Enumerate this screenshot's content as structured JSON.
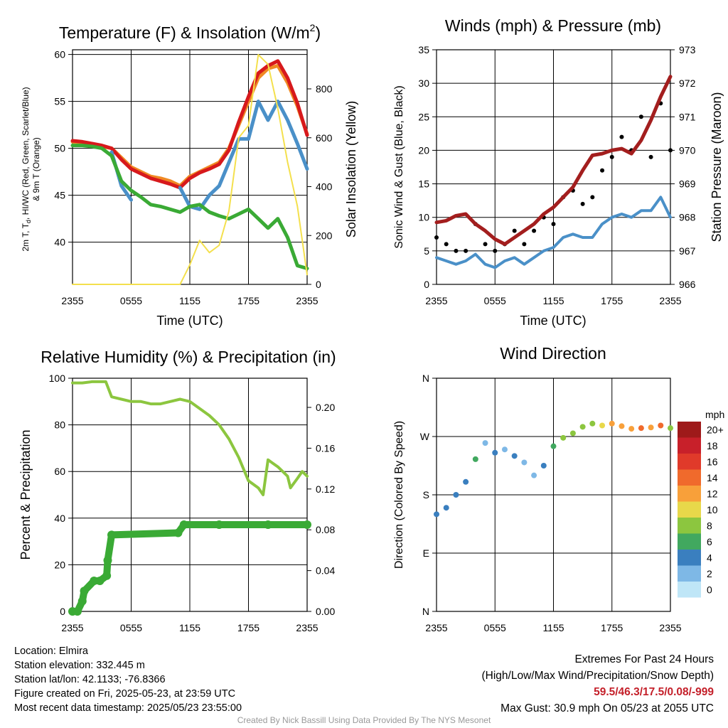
{
  "chart_data": [
    {
      "type": "line",
      "title": "Temperature (F) & Insolation (W/m²)",
      "title_main": "Temperature (F) & Insolation (W/m",
      "title_sup": "2",
      "title_end": ")",
      "xlabel": "Time (UTC)",
      "ylabel_line1": "2m T, T",
      "ylabel_sub": "d",
      "ylabel_line1_end": ", HI/WC (Red, Green, Scarlet/Blue)",
      "ylabel_line2": "& 9m T (Orange)",
      "ylabel_right": "Solar Insolation (Yellow)",
      "x_ticks": [
        "2355",
        "0555",
        "1155",
        "1755",
        "2355"
      ],
      "y_ticks": [
        "40",
        "45",
        "50",
        "55",
        "60"
      ],
      "y2_ticks": [
        "0",
        "200",
        "400",
        "600",
        "800"
      ],
      "ylim": [
        35.5,
        60.5
      ],
      "y2lim": [
        0,
        960
      ],
      "x_hours": [
        0,
        1,
        2,
        3,
        4,
        5,
        6,
        7,
        8,
        9,
        10,
        11,
        12,
        13,
        14,
        15,
        16,
        17,
        18,
        19,
        20,
        21,
        22,
        23,
        24
      ],
      "series": [
        {
          "role": "9m T",
          "color": "#f08a24",
          "values": [
            50.7,
            50.6,
            50.4,
            50.2,
            50.0,
            49.0,
            48.0,
            47.5,
            47.0,
            46.8,
            46.5,
            46.0,
            47.0,
            47.5,
            48.0,
            48.5,
            50.0,
            52.5,
            55.0,
            57.5,
            58.5,
            58.8,
            57.0,
            54.5,
            51.5
          ]
        },
        {
          "role": "2m T",
          "color": "#d7191c",
          "values": [
            50.8,
            50.7,
            50.5,
            50.3,
            50.0,
            48.8,
            47.8,
            47.3,
            46.8,
            46.5,
            46.2,
            45.8,
            46.8,
            47.4,
            47.8,
            48.3,
            49.8,
            52.8,
            55.5,
            58.0,
            58.8,
            59.3,
            57.5,
            54.8,
            51.4
          ]
        },
        {
          "role": "HI/WC",
          "color": "#4a90c8",
          "values": [
            49.5,
            null,
            49.0,
            null,
            49.6,
            46.0,
            44.5,
            null,
            null,
            45.0,
            null,
            45.8,
            43.8,
            43.5,
            45.0,
            46.0,
            48.5,
            51.0,
            51.0,
            55.0,
            53.0,
            55.0,
            53.0,
            50.5,
            47.8
          ]
        },
        {
          "role": "Td",
          "color": "#3aaa35",
          "values": [
            50.3,
            50.3,
            50.2,
            50.0,
            49.2,
            46.5,
            45.5,
            44.8,
            44.0,
            43.8,
            43.5,
            43.2,
            43.8,
            44.0,
            43.2,
            42.8,
            42.5,
            43.0,
            43.5,
            42.5,
            41.5,
            42.5,
            40.5,
            37.5,
            37.2
          ]
        },
        {
          "role": "Solar Insolation",
          "axis": "right",
          "color": "#f4e04d",
          "values": [
            0,
            0,
            0,
            0,
            0,
            0,
            0,
            0,
            0,
            0,
            0,
            0,
            80,
            180,
            130,
            160,
            300,
            600,
            650,
            940,
            900,
            720,
            500,
            320,
            40
          ]
        }
      ]
    },
    {
      "type": "scatter",
      "title": "Winds (mph) & Pressure (mb)",
      "xlabel": "Time (UTC)",
      "ylabel": "Sonic Wind & Gust (Blue, Black)",
      "ylabel_right": "Station Pressure (Maroon)",
      "x_ticks": [
        "2355",
        "0555",
        "1155",
        "1755",
        "2355"
      ],
      "y_ticks": [
        "0",
        "5",
        "10",
        "15",
        "20",
        "25",
        "30",
        "35"
      ],
      "y2_ticks": [
        "966",
        "967",
        "968",
        "969",
        "970",
        "971",
        "972",
        "973"
      ],
      "ylim": [
        0,
        35
      ],
      "y2lim": [
        966,
        973
      ],
      "x_hours": [
        0,
        1,
        2,
        3,
        4,
        5,
        6,
        7,
        8,
        9,
        10,
        11,
        12,
        13,
        14,
        15,
        16,
        17,
        18,
        19,
        20,
        21,
        22,
        23,
        24
      ],
      "series": [
        {
          "role": "Sonic Wind",
          "color": "#4a90c8",
          "values": [
            4.0,
            3.5,
            3.0,
            3.5,
            4.5,
            3.0,
            2.5,
            3.5,
            4.0,
            3.0,
            4.0,
            5.0,
            5.5,
            7.0,
            7.5,
            7.0,
            7.0,
            9.0,
            10.0,
            10.5,
            10.0,
            11.0,
            11.0,
            13.0,
            10.0
          ]
        },
        {
          "role": "Gust",
          "color": "#000000",
          "values": [
            7,
            6,
            5,
            5,
            9,
            6,
            5,
            6,
            8,
            6,
            8,
            10,
            9,
            13,
            14,
            12,
            13,
            17,
            19,
            22,
            20,
            25,
            19,
            27,
            20
          ]
        },
        {
          "role": "Station Pressure",
          "axis": "right",
          "color": "#a31e1e",
          "values": [
            967.85,
            967.9,
            968.05,
            968.1,
            967.8,
            967.6,
            967.35,
            967.2,
            967.4,
            967.6,
            967.8,
            968.1,
            968.3,
            968.6,
            968.9,
            969.4,
            969.85,
            969.9,
            970.0,
            970.05,
            969.9,
            970.3,
            970.9,
            971.6,
            972.2
          ]
        }
      ]
    },
    {
      "type": "line",
      "title": "Relative Humidity (%) & Precipitation (in)",
      "ylabel": "Percent & Precipitation",
      "x_ticks": [
        "2355",
        "0555",
        "1155",
        "1755",
        "2355"
      ],
      "y_ticks": [
        "0",
        "20",
        "40",
        "60",
        "80",
        "100"
      ],
      "y2_ticks": [
        "0.00",
        "0.04",
        "0.08",
        "0.12",
        "0.16",
        "0.20"
      ],
      "ylim": [
        0,
        100
      ],
      "y2lim": [
        0,
        0.2286
      ],
      "series": [
        {
          "role": "Relative Humidity",
          "color": "#8cc63f",
          "x_hours": [
            0,
            1,
            2,
            3,
            3.4,
            4,
            5,
            6,
            7,
            8,
            9,
            10,
            11,
            12,
            13,
            14,
            15,
            16,
            17,
            18,
            19,
            19.5,
            20,
            21,
            22,
            22.3,
            23,
            23.5,
            24
          ],
          "values": [
            98,
            98,
            98.5,
            98.5,
            98.5,
            92,
            91,
            90,
            90,
            89,
            89,
            90,
            91,
            90,
            87,
            84,
            80,
            74,
            66,
            56,
            53,
            50,
            65,
            62,
            58,
            53,
            57,
            60,
            58
          ]
        },
        {
          "role": "Precipitation",
          "axis": "right",
          "color": "#3aaa35",
          "x_hours": [
            0,
            0.5,
            1,
            1.2,
            2.2,
            2.8,
            3.5,
            3.6,
            4.0,
            10.8,
            11.4,
            15,
            20,
            24
          ],
          "values": [
            0.0,
            0.0,
            0.01,
            0.02,
            0.03,
            0.03,
            0.035,
            0.05,
            0.075,
            0.077,
            0.085,
            0.085,
            0.085,
            0.085
          ]
        }
      ]
    },
    {
      "type": "scatter",
      "title": "Wind Direction",
      "ylabel": "Direction (Colored By Speed)",
      "x_ticks": [
        "2355",
        "0555",
        "1155",
        "1755",
        "2355"
      ],
      "y_ticks": [
        "N",
        "E",
        "S",
        "W",
        "N"
      ],
      "ylim_degrees": [
        0,
        360
      ],
      "x_hours": [
        0,
        1,
        2,
        3,
        4,
        5,
        6,
        7,
        8,
        9,
        10,
        11,
        12,
        13,
        14,
        15,
        16,
        17,
        18,
        19,
        20,
        21,
        22,
        23,
        24
      ],
      "direction_deg": [
        150,
        160,
        180,
        200,
        235,
        260,
        245,
        250,
        240,
        230,
        210,
        225,
        255,
        268,
        275,
        285,
        290,
        287,
        290,
        286,
        282,
        283,
        284,
        287,
        283
      ],
      "speed_mph": [
        3,
        3,
        4,
        3,
        5,
        2,
        3,
        2,
        3,
        2,
        2,
        4,
        6,
        7,
        7,
        7,
        8,
        10,
        11,
        12,
        12,
        13,
        11,
        14,
        8
      ],
      "colorbar": {
        "label": "mph",
        "labels": [
          "20+",
          "18",
          "16",
          "14",
          "12",
          "10",
          "8",
          "6",
          "4",
          "2",
          "0"
        ],
        "colors": [
          "#9e1a1a",
          "#c8202a",
          "#e03a2a",
          "#f06a2c",
          "#f8a03a",
          "#e8d84a",
          "#8cc63f",
          "#41a85f",
          "#3a7fbf",
          "#7eb8e6",
          "#bfe6f7"
        ]
      }
    }
  ],
  "info": {
    "location": "Location: Elmira",
    "elevation": "Station elevation: 332.445 m",
    "latlon": "Station lat/lon: 42.1133; -76.8366",
    "created": "Figure created on Fri, 2025-05-23, at 23:59 UTC",
    "recent": "Most recent data timestamp: 2025/05/23 23:55:00"
  },
  "extremes": {
    "title": "Extremes For Past 24 Hours",
    "subtitle": "(High/Low/Max Wind/Precipitation/Snow Depth)",
    "values": "59.5/46.3/17.5/0.08/-999",
    "gust": "Max Gust: 30.9 mph On 05/23 at 2055 UTC"
  },
  "credit": "Created By Nick Bassill Using Data Provided By The NYS Mesonet"
}
